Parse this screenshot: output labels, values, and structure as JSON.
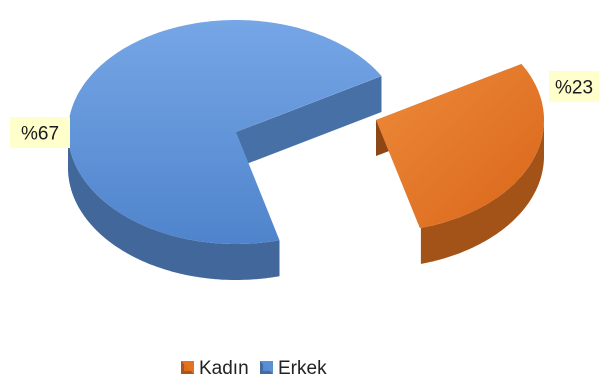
{
  "chart_data": {
    "type": "pie",
    "style": "3d-exploded",
    "categories": [
      "Kadın",
      "Erkek"
    ],
    "values": [
      23,
      67
    ],
    "data_labels": [
      "%23",
      "%67"
    ],
    "colors": {
      "Kadın": "#E37222",
      "Erkek": "#5B8FD6"
    },
    "label_box_color": "#FFFFCC",
    "legend_position": "bottom"
  }
}
